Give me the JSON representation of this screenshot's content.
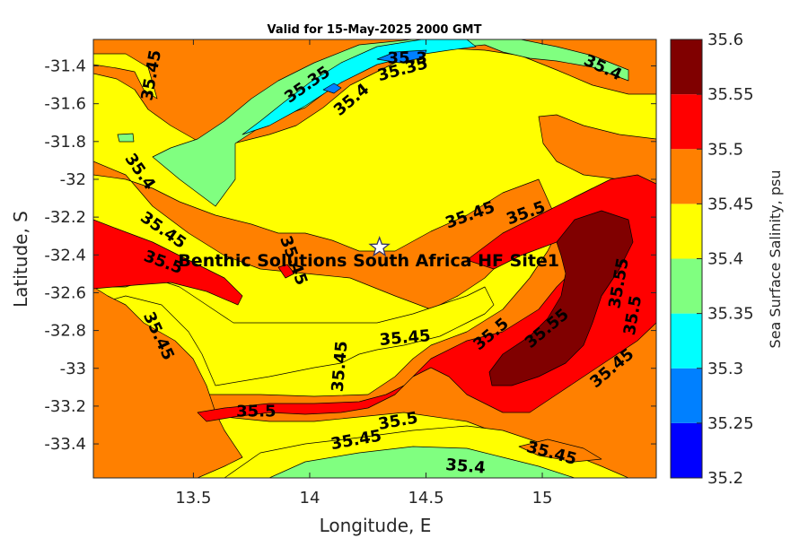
{
  "chart_data": {
    "type": "contour",
    "title": "Valid for 15-May-2025 2000 GMT",
    "xlabel": "Longitude, E",
    "ylabel": "Latitude, S",
    "colorbar_label": "Sea Surface Salinity, psu",
    "xlim": [
      13.07,
      15.49
    ],
    "ylim": [
      -33.58,
      -31.26
    ],
    "x_ticks": [
      13.5,
      14,
      14.5,
      15
    ],
    "y_ticks": [
      -31.4,
      -31.6,
      -31.8,
      -32,
      -32.2,
      -32.4,
      -32.6,
      -32.8,
      -33,
      -33.2,
      -33.4
    ],
    "colorbar": {
      "levels": [
        35.2,
        35.25,
        35.3,
        35.35,
        35.4,
        35.45,
        35.5,
        35.55,
        35.6
      ],
      "tick_labels": [
        "35.2",
        "35.25",
        "35.3",
        "35.35",
        "35.4",
        "35.45",
        "35.5",
        "35.55",
        "35.6"
      ],
      "colors": [
        "#0000ff",
        "#0080ff",
        "#00ffff",
        "#80ff80",
        "#ffff00",
        "#ff8000",
        "#ff0000",
        "#800000"
      ]
    },
    "annotation": {
      "text": "Benthic Solutions South Africa HF Site1",
      "lon": 14.3,
      "lat": -32.36,
      "marker": "star"
    },
    "contour_labels": [
      {
        "text": "35.45",
        "lon": 13.32,
        "lat": -31.45,
        "angle": -80
      },
      {
        "text": "35.35",
        "lon": 13.99,
        "lat": -31.5,
        "angle": -35
      },
      {
        "text": "35.3",
        "lon": 14.42,
        "lat": -31.36,
        "angle": 0
      },
      {
        "text": "35.35",
        "lon": 14.4,
        "lat": -31.42,
        "angle": -15
      },
      {
        "text": "35.4",
        "lon": 14.18,
        "lat": -31.58,
        "angle": -40
      },
      {
        "text": "35.4",
        "lon": 15.26,
        "lat": -31.41,
        "angle": 25
      },
      {
        "text": "35.4",
        "lon": 13.27,
        "lat": -31.96,
        "angle": 55
      },
      {
        "text": "35.45",
        "lon": 13.37,
        "lat": -32.27,
        "angle": 35
      },
      {
        "text": "35.5",
        "lon": 13.37,
        "lat": -32.44,
        "angle": 20
      },
      {
        "text": "35.45",
        "lon": 13.93,
        "lat": -32.43,
        "angle": 70
      },
      {
        "text": "35.45",
        "lon": 14.69,
        "lat": -32.19,
        "angle": -20
      },
      {
        "text": "35.5",
        "lon": 14.93,
        "lat": -32.18,
        "angle": -20
      },
      {
        "text": "35.45",
        "lon": 13.35,
        "lat": -32.83,
        "angle": 65
      },
      {
        "text": "35.45",
        "lon": 14.13,
        "lat": -32.99,
        "angle": -85
      },
      {
        "text": "35.45",
        "lon": 14.41,
        "lat": -32.84,
        "angle": -5
      },
      {
        "text": "35.5",
        "lon": 14.78,
        "lat": -32.82,
        "angle": -40
      },
      {
        "text": "35.55",
        "lon": 15.02,
        "lat": -32.79,
        "angle": -40
      },
      {
        "text": "35.55",
        "lon": 15.33,
        "lat": -32.55,
        "angle": -80
      },
      {
        "text": "35.5",
        "lon": 15.39,
        "lat": -32.72,
        "angle": -80
      },
      {
        "text": "35.45",
        "lon": 15.3,
        "lat": -33.0,
        "angle": -40
      },
      {
        "text": "35.5",
        "lon": 13.77,
        "lat": -33.23,
        "angle": 0
      },
      {
        "text": "35.5",
        "lon": 14.38,
        "lat": -33.28,
        "angle": -10
      },
      {
        "text": "35.45",
        "lon": 14.2,
        "lat": -33.38,
        "angle": -10
      },
      {
        "text": "35.4",
        "lon": 14.67,
        "lat": -33.52,
        "angle": 5
      },
      {
        "text": "35.45",
        "lon": 15.04,
        "lat": -33.45,
        "angle": 15
      }
    ]
  }
}
